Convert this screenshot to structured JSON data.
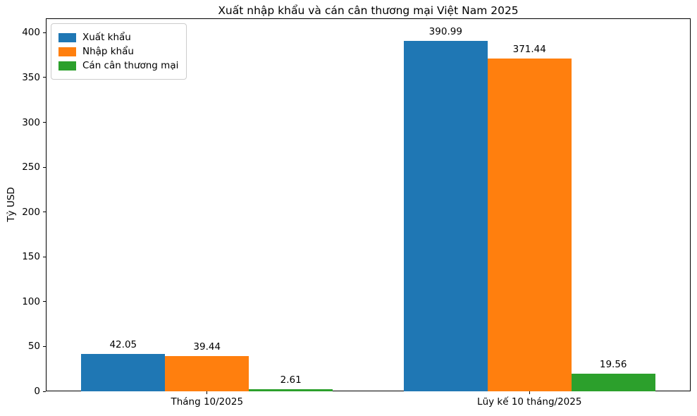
{
  "chart_data": {
    "type": "bar",
    "title": "Xuất nhập khẩu và cán cân thương mại Việt Nam 2025",
    "xlabel": "",
    "ylabel": "Tỷ USD",
    "categories": [
      "Tháng 10/2025",
      "Lũy kế 10 tháng/2025"
    ],
    "series": [
      {
        "name": "Xuất khẩu",
        "color": "#1f77b4",
        "values": [
          42.05,
          390.99
        ]
      },
      {
        "name": "Nhập khẩu",
        "color": "#ff7f0e",
        "values": [
          39.44,
          371.44
        ]
      },
      {
        "name": "Cán cân thương mại",
        "color": "#2ca02c",
        "values": [
          2.61,
          19.56
        ]
      }
    ],
    "value_labels": [
      [
        "42.05",
        "390.99"
      ],
      [
        "39.44",
        "371.44"
      ],
      [
        "2.61",
        "19.56"
      ]
    ],
    "yticks": [
      0,
      50,
      100,
      150,
      200,
      250,
      300,
      350,
      400
    ],
    "ylim": [
      0,
      416
    ],
    "grid": false,
    "legend_position": "upper-left",
    "value_label_decimals": 2
  }
}
